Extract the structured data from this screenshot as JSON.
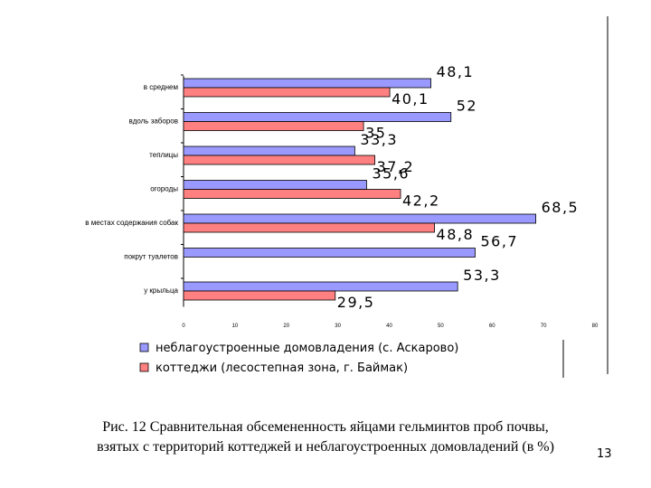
{
  "chart_data": {
    "type": "bar",
    "orientation": "horizontal",
    "categories": [
      "в среднем",
      "вдоль заборов",
      "теплицы",
      "огороды",
      "в местах содержания собак",
      "покрут туалетов",
      "у крыльца"
    ],
    "series": [
      {
        "name": "неблагоустроенные домовладения (с. Аскарово)",
        "values": [
          48.1,
          52,
          33.3,
          35.6,
          68.5,
          56.7,
          53.3
        ],
        "labels": [
          "48,1",
          "52",
          "33,3",
          "35,6",
          "68,5",
          "56,7",
          "53,3"
        ],
        "color": "#9999ff"
      },
      {
        "name": "коттеджи (лесостепная зона, г. Баймак)",
        "values": [
          40.1,
          35,
          37.2,
          42.2,
          48.8,
          null,
          29.5
        ],
        "labels": [
          "40,1",
          "35",
          "37,2",
          "42,2",
          "48,8",
          "",
          "29,5"
        ],
        "color": "#ff8080"
      }
    ],
    "xlim": [
      0,
      80
    ],
    "xticks": [
      "0",
      "10",
      "20",
      "30",
      "40",
      "50",
      "60",
      "70",
      "80"
    ],
    "legend": "bottom",
    "grid": false
  },
  "caption": {
    "line1": "Рис. 12 Сравнительная обсемененность яйцами гельминтов проб почвы,",
    "line2": "взятых с территорий коттеджей и неблагоустроенных домовладений (в %)"
  },
  "page_number": "13"
}
